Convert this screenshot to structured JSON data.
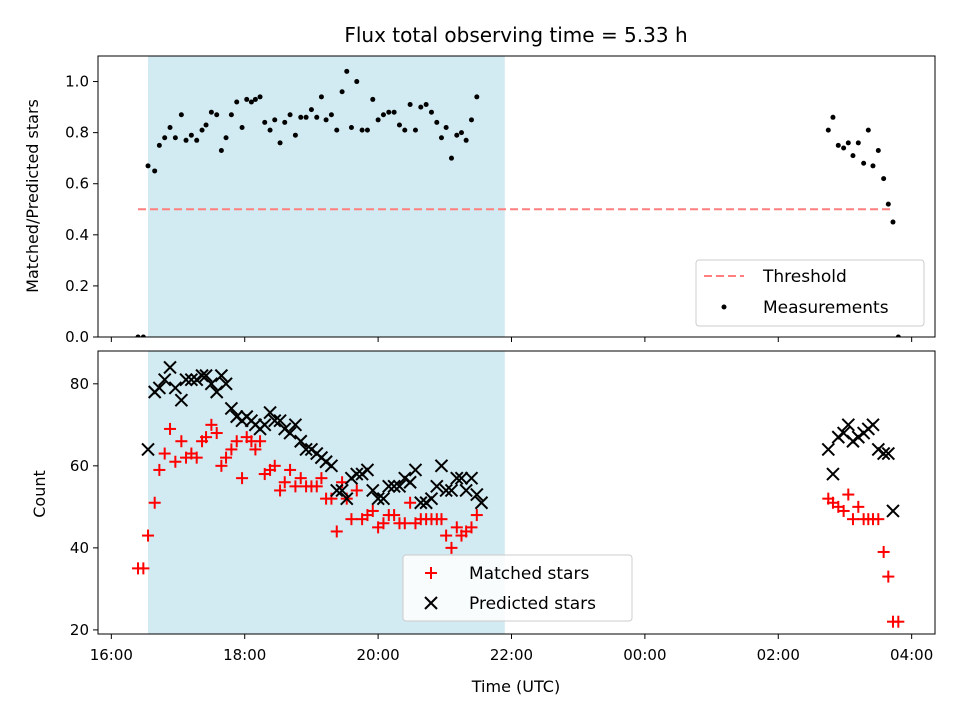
{
  "chart_data": [
    {
      "type": "scatter",
      "title": "Flux total observing time = 5.33 h",
      "xlabel": "",
      "ylabel": "Matched/Predicted stars",
      "x_unit": "hours since 16:00 UTC",
      "xlim": [
        -0.2,
        12.35
      ],
      "ylim": [
        0,
        1.1
      ],
      "y_ticks": [
        "0.0",
        "0.2",
        "0.4",
        "0.6",
        "0.8",
        "1.0"
      ],
      "shaded_interval": [
        0.55,
        5.9
      ],
      "shade_color": "#add8e6",
      "threshold": {
        "name": "Threshold",
        "value": 0.5,
        "x_range": [
          0.4,
          11.7
        ],
        "color": "#ff7f7f"
      },
      "series": [
        {
          "name": "Measurements",
          "color": "#000000",
          "points": [
            [
              0.4,
              0.0
            ],
            [
              0.48,
              0.0
            ],
            [
              0.55,
              0.67
            ],
            [
              0.65,
              0.65
            ],
            [
              0.72,
              0.75
            ],
            [
              0.8,
              0.78
            ],
            [
              0.88,
              0.82
            ],
            [
              0.96,
              0.78
            ],
            [
              1.05,
              0.87
            ],
            [
              1.12,
              0.77
            ],
            [
              1.2,
              0.79
            ],
            [
              1.28,
              0.77
            ],
            [
              1.36,
              0.81
            ],
            [
              1.42,
              0.83
            ],
            [
              1.5,
              0.88
            ],
            [
              1.58,
              0.87
            ],
            [
              1.65,
              0.73
            ],
            [
              1.72,
              0.78
            ],
            [
              1.8,
              0.87
            ],
            [
              1.88,
              0.92
            ],
            [
              1.96,
              0.82
            ],
            [
              2.03,
              0.93
            ],
            [
              2.1,
              0.92
            ],
            [
              2.16,
              0.93
            ],
            [
              2.23,
              0.94
            ],
            [
              2.3,
              0.84
            ],
            [
              2.38,
              0.81
            ],
            [
              2.45,
              0.85
            ],
            [
              2.53,
              0.76
            ],
            [
              2.6,
              0.84
            ],
            [
              2.68,
              0.87
            ],
            [
              2.76,
              0.79
            ],
            [
              2.84,
              0.86
            ],
            [
              2.92,
              0.86
            ],
            [
              3.0,
              0.89
            ],
            [
              3.08,
              0.86
            ],
            [
              3.15,
              0.94
            ],
            [
              3.22,
              0.85
            ],
            [
              3.3,
              0.87
            ],
            [
              3.38,
              0.81
            ],
            [
              3.46,
              0.96
            ],
            [
              3.53,
              1.04
            ],
            [
              3.6,
              0.82
            ],
            [
              3.68,
              1.0
            ],
            [
              3.76,
              0.81
            ],
            [
              3.84,
              0.81
            ],
            [
              3.92,
              0.93
            ],
            [
              4.0,
              0.85
            ],
            [
              4.08,
              0.87
            ],
            [
              4.16,
              0.88
            ],
            [
              4.24,
              0.88
            ],
            [
              4.32,
              0.83
            ],
            [
              4.4,
              0.81
            ],
            [
              4.48,
              0.91
            ],
            [
              4.56,
              0.81
            ],
            [
              4.64,
              0.9
            ],
            [
              4.72,
              0.91
            ],
            [
              4.8,
              0.88
            ],
            [
              4.88,
              0.84
            ],
            [
              4.95,
              0.78
            ],
            [
              5.02,
              0.82
            ],
            [
              5.1,
              0.7
            ],
            [
              5.18,
              0.79
            ],
            [
              5.25,
              0.8
            ],
            [
              5.32,
              0.77
            ],
            [
              5.4,
              0.85
            ],
            [
              5.48,
              0.94
            ],
            [
              10.75,
              0.81
            ],
            [
              10.82,
              0.86
            ],
            [
              10.9,
              0.75
            ],
            [
              10.98,
              0.74
            ],
            [
              11.05,
              0.76
            ],
            [
              11.12,
              0.71
            ],
            [
              11.2,
              0.76
            ],
            [
              11.28,
              0.68
            ],
            [
              11.35,
              0.81
            ],
            [
              11.42,
              0.67
            ],
            [
              11.5,
              0.73
            ],
            [
              11.58,
              0.62
            ],
            [
              11.65,
              0.52
            ],
            [
              11.72,
              0.45
            ],
            [
              11.8,
              0.0
            ]
          ]
        }
      ],
      "legend": {
        "placement": "lower-right",
        "entries": [
          "Threshold",
          "Measurements"
        ]
      }
    },
    {
      "type": "scatter",
      "title": "",
      "xlabel": "Time (UTC)",
      "ylabel": "Count",
      "x_unit": "hours since 16:00 UTC",
      "xlim": [
        -0.2,
        12.35
      ],
      "ylim": [
        19,
        88
      ],
      "x_ticks": [
        {
          "value": 0,
          "label": "16:00"
        },
        {
          "value": 2,
          "label": "18:00"
        },
        {
          "value": 4,
          "label": "20:00"
        },
        {
          "value": 6,
          "label": "22:00"
        },
        {
          "value": 8,
          "label": "00:00"
        },
        {
          "value": 10,
          "label": "02:00"
        },
        {
          "value": 12,
          "label": "04:00"
        }
      ],
      "y_ticks": [
        "20",
        "40",
        "60",
        "80"
      ],
      "shaded_interval": [
        0.55,
        5.9
      ],
      "shade_color": "#add8e6",
      "series": [
        {
          "name": "Matched stars",
          "marker": "plus",
          "color": "#ff0000",
          "points": [
            [
              0.4,
              35
            ],
            [
              0.48,
              35
            ],
            [
              0.55,
              43
            ],
            [
              0.65,
              51
            ],
            [
              0.72,
              59
            ],
            [
              0.8,
              63
            ],
            [
              0.88,
              69
            ],
            [
              0.96,
              61
            ],
            [
              1.05,
              66
            ],
            [
              1.12,
              62
            ],
            [
              1.2,
              63
            ],
            [
              1.28,
              62
            ],
            [
              1.36,
              66
            ],
            [
              1.42,
              67
            ],
            [
              1.5,
              70
            ],
            [
              1.58,
              68
            ],
            [
              1.65,
              60
            ],
            [
              1.72,
              62
            ],
            [
              1.8,
              64
            ],
            [
              1.88,
              66
            ],
            [
              1.96,
              57
            ],
            [
              2.03,
              67
            ],
            [
              2.1,
              66
            ],
            [
              2.16,
              64
            ],
            [
              2.23,
              66
            ],
            [
              2.3,
              58
            ],
            [
              2.38,
              59
            ],
            [
              2.45,
              60
            ],
            [
              2.53,
              54
            ],
            [
              2.6,
              56
            ],
            [
              2.68,
              59
            ],
            [
              2.76,
              55
            ],
            [
              2.84,
              57
            ],
            [
              2.92,
              55
            ],
            [
              3.0,
              55
            ],
            [
              3.08,
              55
            ],
            [
              3.15,
              57
            ],
            [
              3.22,
              52
            ],
            [
              3.3,
              52
            ],
            [
              3.38,
              44
            ],
            [
              3.46,
              56
            ],
            [
              3.53,
              52
            ],
            [
              3.6,
              47
            ],
            [
              3.68,
              54
            ],
            [
              3.76,
              47
            ],
            [
              3.84,
              48
            ],
            [
              3.92,
              49
            ],
            [
              4.0,
              45
            ],
            [
              4.08,
              46
            ],
            [
              4.16,
              48
            ],
            [
              4.24,
              48
            ],
            [
              4.32,
              46
            ],
            [
              4.4,
              46
            ],
            [
              4.48,
              51
            ],
            [
              4.56,
              46
            ],
            [
              4.64,
              47
            ],
            [
              4.72,
              47
            ],
            [
              4.8,
              47
            ],
            [
              4.88,
              47
            ],
            [
              4.95,
              47
            ],
            [
              5.02,
              43
            ],
            [
              5.1,
              40
            ],
            [
              5.18,
              45
            ],
            [
              5.25,
              43
            ],
            [
              5.32,
              44
            ],
            [
              5.4,
              45
            ],
            [
              5.48,
              48
            ],
            [
              10.75,
              52
            ],
            [
              10.82,
              51
            ],
            [
              10.9,
              50
            ],
            [
              10.98,
              49
            ],
            [
              11.05,
              53
            ],
            [
              11.12,
              47
            ],
            [
              11.2,
              50
            ],
            [
              11.28,
              47
            ],
            [
              11.35,
              47
            ],
            [
              11.42,
              47
            ],
            [
              11.5,
              47
            ],
            [
              11.58,
              39
            ],
            [
              11.65,
              33
            ],
            [
              11.72,
              22
            ],
            [
              11.8,
              22
            ]
          ]
        },
        {
          "name": "Predicted stars",
          "marker": "x",
          "color": "#000000",
          "points": [
            [
              0.55,
              64
            ],
            [
              0.65,
              78
            ],
            [
              0.72,
              79
            ],
            [
              0.8,
              81
            ],
            [
              0.88,
              84
            ],
            [
              0.96,
              79
            ],
            [
              1.05,
              76
            ],
            [
              1.12,
              81
            ],
            [
              1.2,
              81
            ],
            [
              1.28,
              81
            ],
            [
              1.36,
              82
            ],
            [
              1.42,
              82
            ],
            [
              1.5,
              80
            ],
            [
              1.58,
              78
            ],
            [
              1.65,
              82
            ],
            [
              1.72,
              80
            ],
            [
              1.8,
              74
            ],
            [
              1.88,
              72
            ],
            [
              1.96,
              71
            ],
            [
              2.03,
              72
            ],
            [
              2.1,
              71
            ],
            [
              2.16,
              70
            ],
            [
              2.23,
              69
            ],
            [
              2.3,
              70
            ],
            [
              2.38,
              73
            ],
            [
              2.45,
              71
            ],
            [
              2.53,
              71
            ],
            [
              2.6,
              69
            ],
            [
              2.68,
              68
            ],
            [
              2.76,
              70
            ],
            [
              2.84,
              66
            ],
            [
              2.92,
              64
            ],
            [
              3.0,
              64
            ],
            [
              3.08,
              63
            ],
            [
              3.15,
              62
            ],
            [
              3.22,
              61
            ],
            [
              3.3,
              60
            ],
            [
              3.38,
              54
            ],
            [
              3.46,
              54
            ],
            [
              3.53,
              52
            ],
            [
              3.6,
              57
            ],
            [
              3.68,
              58
            ],
            [
              3.76,
              58
            ],
            [
              3.84,
              59
            ],
            [
              3.92,
              54
            ],
            [
              4.0,
              52
            ],
            [
              4.08,
              52
            ],
            [
              4.16,
              55
            ],
            [
              4.24,
              55
            ],
            [
              4.32,
              55
            ],
            [
              4.4,
              57
            ],
            [
              4.48,
              56
            ],
            [
              4.56,
              59
            ],
            [
              4.64,
              51
            ],
            [
              4.72,
              51
            ],
            [
              4.8,
              52
            ],
            [
              4.88,
              55
            ],
            [
              4.95,
              60
            ],
            [
              5.02,
              54
            ],
            [
              5.1,
              54
            ],
            [
              5.18,
              57
            ],
            [
              5.25,
              57
            ],
            [
              5.32,
              54
            ],
            [
              5.4,
              57
            ],
            [
              5.48,
              53
            ],
            [
              5.55,
              51
            ],
            [
              10.75,
              64
            ],
            [
              10.82,
              58
            ],
            [
              10.9,
              67
            ],
            [
              10.98,
              68
            ],
            [
              11.05,
              70
            ],
            [
              11.12,
              66
            ],
            [
              11.2,
              67
            ],
            [
              11.28,
              68
            ],
            [
              11.35,
              69
            ],
            [
              11.42,
              70
            ],
            [
              11.5,
              64
            ],
            [
              11.58,
              63
            ],
            [
              11.65,
              63
            ],
            [
              11.72,
              49
            ]
          ]
        }
      ],
      "legend": {
        "placement": "lower-center",
        "entries": [
          "Matched stars",
          "Predicted stars"
        ]
      }
    }
  ]
}
